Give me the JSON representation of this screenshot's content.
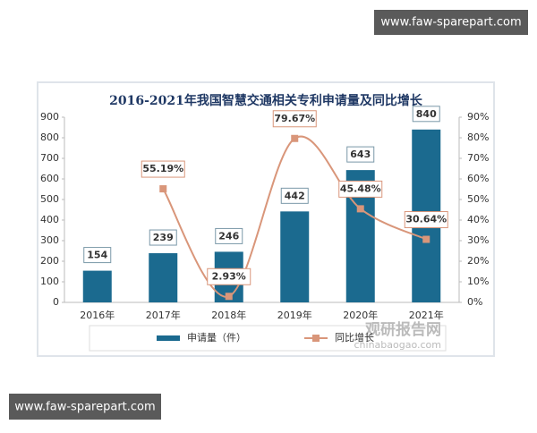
{
  "chart_data": {
    "type": "bar-line",
    "title": "2016-2021年我国智慧交通相关专利申请量及同比增长",
    "categories": [
      "2016年",
      "2017年",
      "2018年",
      "2019年",
      "2020年",
      "2021年"
    ],
    "series": [
      {
        "name": "申请量（件）",
        "type": "bar",
        "color": "#1b6a8f",
        "values": [
          154,
          239,
          246,
          442,
          643,
          840
        ]
      },
      {
        "name": "同比增长",
        "type": "line",
        "axis": "y2",
        "color": "#d9967a",
        "values": [
          null,
          55.19,
          2.93,
          79.67,
          45.48,
          30.64
        ],
        "value_labels": [
          null,
          "55.19%",
          "2.93%",
          "79.67%",
          "45.48%",
          "30.64%"
        ]
      }
    ],
    "ylim": [
      0,
      900
    ],
    "yticks": [
      0,
      100,
      200,
      300,
      400,
      500,
      600,
      700,
      800,
      900
    ],
    "y2lim": [
      0,
      90
    ],
    "y2ticks": [
      {
        "value": 0,
        "label": "0%"
      },
      {
        "value": 10,
        "label": "10%"
      },
      {
        "value": 20,
        "label": "20%"
      },
      {
        "value": 30,
        "label": "30%"
      },
      {
        "value": 40,
        "label": "40%"
      },
      {
        "value": 50,
        "label": "50%"
      },
      {
        "value": 60,
        "label": "60%"
      },
      {
        "value": 70,
        "label": "70%"
      },
      {
        "value": 80,
        "label": "80%"
      },
      {
        "value": 90,
        "label": "90%"
      }
    ],
    "legend": "bottom"
  },
  "watermark_top": "www.faw-sparepart.com",
  "watermark_bottom": "www.faw-sparepart.com",
  "logo": {
    "name": "观研报告网",
    "url": "chinabaogao.com"
  }
}
